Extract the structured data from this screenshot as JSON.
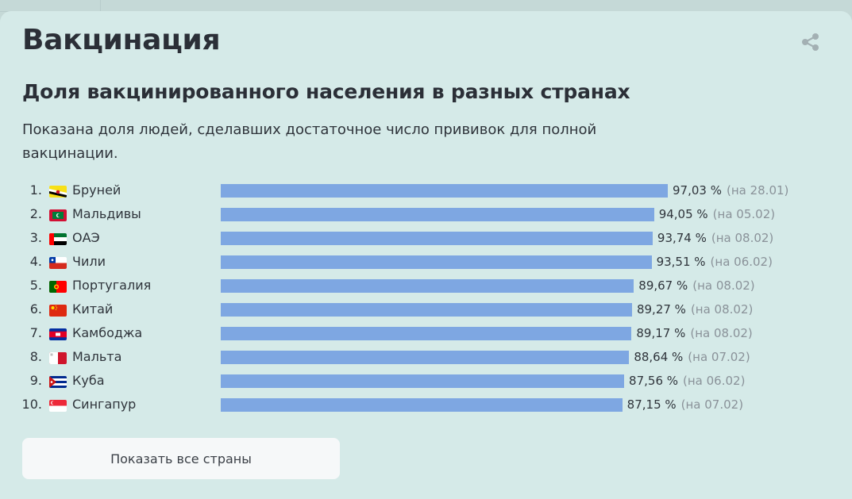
{
  "page": {
    "title": "Вакцинация",
    "subtitle": "Доля вакцинированного населения в разных странах",
    "description": "Показана доля людей, сделавших достаточное число прививок для полной вакцинации.",
    "show_all_button": "Показать все страны"
  },
  "icons": {
    "share": "share-icon"
  },
  "colors": {
    "bar": "#7ea7e2",
    "background": "#d5eae8",
    "date": "#8a9299"
  },
  "chart_data": {
    "type": "bar",
    "orientation": "horizontal",
    "xlim": [
      0,
      100
    ],
    "rows": [
      {
        "rank": "1.",
        "country": "Бруней",
        "flag": "brunei",
        "value": 97.03,
        "value_label": "97,03 %",
        "date_label": "(на 28.01)"
      },
      {
        "rank": "2.",
        "country": "Мальдивы",
        "flag": "maldives",
        "value": 94.05,
        "value_label": "94,05 %",
        "date_label": "(на 05.02)"
      },
      {
        "rank": "3.",
        "country": "ОАЭ",
        "flag": "uae",
        "value": 93.74,
        "value_label": "93,74 %",
        "date_label": "(на 08.02)"
      },
      {
        "rank": "4.",
        "country": "Чили",
        "flag": "chile",
        "value": 93.51,
        "value_label": "93,51 %",
        "date_label": "(на 06.02)"
      },
      {
        "rank": "5.",
        "country": "Португалия",
        "flag": "portugal",
        "value": 89.67,
        "value_label": "89,67 %",
        "date_label": "(на 08.02)"
      },
      {
        "rank": "6.",
        "country": "Китай",
        "flag": "china",
        "value": 89.27,
        "value_label": "89,27 %",
        "date_label": "(на 08.02)"
      },
      {
        "rank": "7.",
        "country": "Камбоджа",
        "flag": "cambodia",
        "value": 89.17,
        "value_label": "89,17 %",
        "date_label": "(на 08.02)"
      },
      {
        "rank": "8.",
        "country": "Мальта",
        "flag": "malta",
        "value": 88.64,
        "value_label": "88,64 %",
        "date_label": "(на 07.02)"
      },
      {
        "rank": "9.",
        "country": "Куба",
        "flag": "cuba",
        "value": 87.56,
        "value_label": "87,56 %",
        "date_label": "(на 06.02)"
      },
      {
        "rank": "10.",
        "country": "Сингапур",
        "flag": "singapore",
        "value": 87.15,
        "value_label": "87,15 %",
        "date_label": "(на 07.02)"
      }
    ]
  }
}
